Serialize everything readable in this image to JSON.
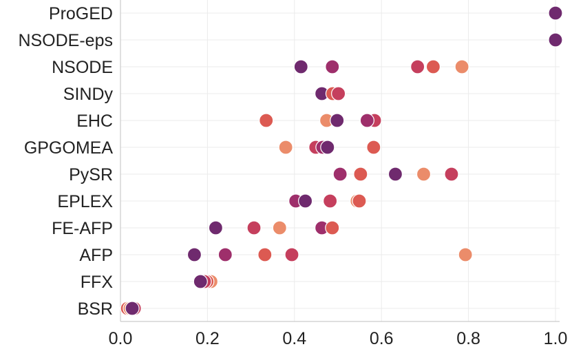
{
  "chart_data": {
    "type": "scatter",
    "title": "",
    "xlabel": "",
    "ylabel": "",
    "xlim": [
      0.0,
      1.0
    ],
    "x_ticks": [
      "0.0",
      "0.2",
      "0.4",
      "0.6",
      "0.8",
      "1.0"
    ],
    "categories": [
      "ProGED",
      "NSODE-eps",
      "NSODE",
      "SINDy",
      "EHC",
      "GPGOMEA",
      "PySR",
      "EPLEX",
      "FE-AFP",
      "AFP",
      "FFX",
      "BSR"
    ],
    "grid": true,
    "legend": "none",
    "palette": [
      "#eb8c6a",
      "#dc5a52",
      "#c53f5d",
      "#9e2f6b",
      "#6f2a6e"
    ],
    "points": [
      {
        "category": "ProGED",
        "x": 1.0,
        "color": 1
      },
      {
        "category": "ProGED",
        "x": 1.0,
        "color": 4
      },
      {
        "category": "NSODE-eps",
        "x": 1.0,
        "color": 1
      },
      {
        "category": "NSODE-eps",
        "x": 1.0,
        "color": 4
      },
      {
        "category": "NSODE",
        "x": 0.415,
        "color": 4
      },
      {
        "category": "NSODE",
        "x": 0.487,
        "color": 3
      },
      {
        "category": "NSODE",
        "x": 0.683,
        "color": 2
      },
      {
        "category": "NSODE",
        "x": 0.719,
        "color": 1
      },
      {
        "category": "NSODE",
        "x": 0.785,
        "color": 0
      },
      {
        "category": "SINDy",
        "x": 0.463,
        "color": 4
      },
      {
        "category": "SINDy",
        "x": 0.488,
        "color": 1
      },
      {
        "category": "SINDy",
        "x": 0.501,
        "color": 2
      },
      {
        "category": "EHC",
        "x": 0.335,
        "color": 1
      },
      {
        "category": "EHC",
        "x": 0.474,
        "color": 0
      },
      {
        "category": "EHC",
        "x": 0.498,
        "color": 4
      },
      {
        "category": "EHC",
        "x": 0.584,
        "color": 2
      },
      {
        "category": "EHC",
        "x": 0.567,
        "color": 3
      },
      {
        "category": "GPGOMEA",
        "x": 0.38,
        "color": 0
      },
      {
        "category": "GPGOMEA",
        "x": 0.449,
        "color": 2
      },
      {
        "category": "GPGOMEA",
        "x": 0.465,
        "color": 3
      },
      {
        "category": "GPGOMEA",
        "x": 0.476,
        "color": 4
      },
      {
        "category": "GPGOMEA",
        "x": 0.582,
        "color": 1
      },
      {
        "category": "PySR",
        "x": 0.505,
        "color": 3
      },
      {
        "category": "PySR",
        "x": 0.552,
        "color": 1
      },
      {
        "category": "PySR",
        "x": 0.632,
        "color": 4
      },
      {
        "category": "PySR",
        "x": 0.697,
        "color": 0
      },
      {
        "category": "PySR",
        "x": 0.761,
        "color": 2
      },
      {
        "category": "EPLEX",
        "x": 0.403,
        "color": 3
      },
      {
        "category": "EPLEX",
        "x": 0.425,
        "color": 4
      },
      {
        "category": "EPLEX",
        "x": 0.482,
        "color": 2
      },
      {
        "category": "EPLEX",
        "x": 0.544,
        "color": 0
      },
      {
        "category": "EPLEX",
        "x": 0.549,
        "color": 1
      },
      {
        "category": "FE-AFP",
        "x": 0.219,
        "color": 4
      },
      {
        "category": "FE-AFP",
        "x": 0.307,
        "color": 2
      },
      {
        "category": "FE-AFP",
        "x": 0.366,
        "color": 0
      },
      {
        "category": "FE-AFP",
        "x": 0.463,
        "color": 3
      },
      {
        "category": "FE-AFP",
        "x": 0.487,
        "color": 1
      },
      {
        "category": "AFP",
        "x": 0.17,
        "color": 4
      },
      {
        "category": "AFP",
        "x": 0.241,
        "color": 3
      },
      {
        "category": "AFP",
        "x": 0.332,
        "color": 1
      },
      {
        "category": "AFP",
        "x": 0.394,
        "color": 2
      },
      {
        "category": "AFP",
        "x": 0.793,
        "color": 0
      },
      {
        "category": "FFX",
        "x": 0.208,
        "color": 0
      },
      {
        "category": "FFX",
        "x": 0.199,
        "color": 1
      },
      {
        "category": "FFX",
        "x": 0.193,
        "color": 2
      },
      {
        "category": "FFX",
        "x": 0.184,
        "color": 4
      },
      {
        "category": "BSR",
        "x": 0.016,
        "color": 1
      },
      {
        "category": "BSR",
        "x": 0.022,
        "color": 0
      },
      {
        "category": "BSR",
        "x": 0.032,
        "color": 2
      },
      {
        "category": "BSR",
        "x": 0.027,
        "color": 4
      }
    ]
  }
}
